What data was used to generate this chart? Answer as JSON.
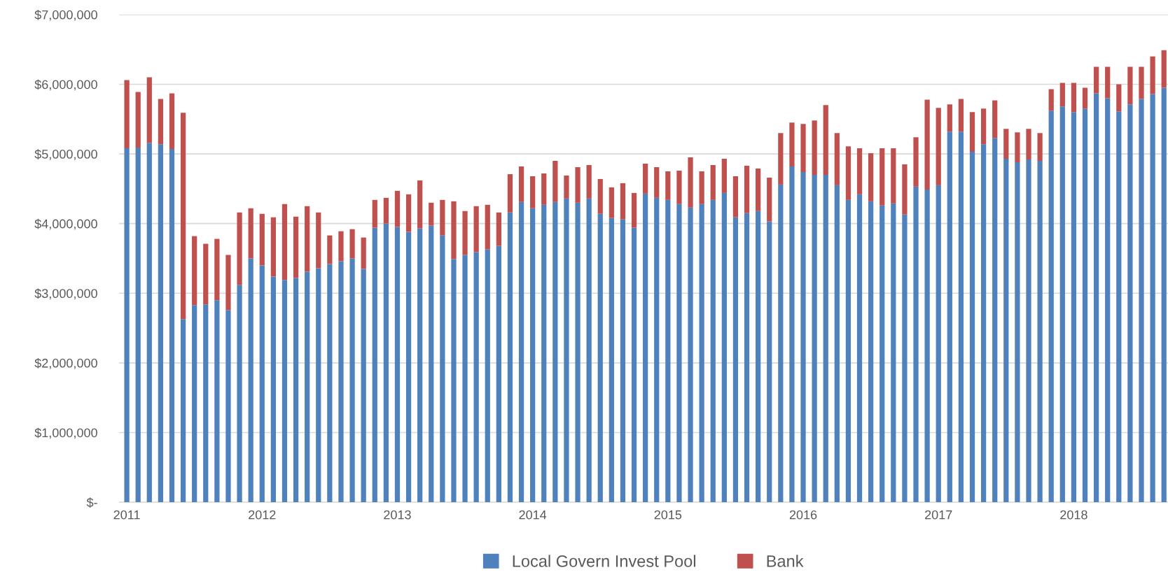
{
  "chart_data": {
    "type": "bar",
    "stacked": true,
    "categories": [
      "2011",
      null,
      null,
      null,
      null,
      null,
      null,
      null,
      null,
      null,
      null,
      null,
      "2012",
      null,
      null,
      null,
      null,
      null,
      null,
      null,
      null,
      null,
      null,
      null,
      "2013",
      null,
      null,
      null,
      null,
      null,
      null,
      null,
      null,
      null,
      null,
      null,
      "2014",
      null,
      null,
      null,
      null,
      null,
      null,
      null,
      null,
      null,
      null,
      null,
      "2015",
      null,
      null,
      null,
      null,
      null,
      null,
      null,
      null,
      null,
      null,
      null,
      "2016",
      null,
      null,
      null,
      null,
      null,
      null,
      null,
      null,
      null,
      null,
      null,
      "2017",
      null,
      null,
      null,
      null,
      null,
      null,
      null,
      null,
      null,
      null,
      null,
      "2018",
      null,
      null,
      null,
      null,
      null,
      null,
      null,
      null
    ],
    "series": [
      {
        "name": "Local Govern Invest Pool",
        "color": "#4f81bd",
        "values": [
          5080000,
          5090000,
          5160000,
          5140000,
          5070000,
          2630000,
          2830000,
          2840000,
          2900000,
          2760000,
          3120000,
          3500000,
          3400000,
          3240000,
          3190000,
          3220000,
          3310000,
          3360000,
          3420000,
          3460000,
          3500000,
          3350000,
          3940000,
          4000000,
          3950000,
          3880000,
          3930000,
          3970000,
          3830000,
          3490000,
          3550000,
          3590000,
          3630000,
          3680000,
          4160000,
          4310000,
          4220000,
          4270000,
          4310000,
          4360000,
          4300000,
          4360000,
          4140000,
          4080000,
          4060000,
          3940000,
          4430000,
          4370000,
          4340000,
          4280000,
          4230000,
          4280000,
          4340000,
          4440000,
          4090000,
          4150000,
          4180000,
          4030000,
          4560000,
          4820000,
          4740000,
          4700000,
          4700000,
          4550000,
          4340000,
          4420000,
          4320000,
          4260000,
          4290000,
          4130000,
          4530000,
          4490000,
          4550000,
          5320000,
          5320000,
          5030000,
          5140000,
          5230000,
          4930000,
          4880000,
          4920000,
          4900000,
          5620000,
          5680000,
          5600000,
          5650000,
          5870000,
          5800000,
          5610000,
          5710000,
          5790000,
          5860000,
          5950000
        ]
      },
      {
        "name": "Bank",
        "color": "#c0504d",
        "values": [
          980000,
          800000,
          940000,
          650000,
          800000,
          2960000,
          990000,
          870000,
          880000,
          790000,
          1040000,
          720000,
          740000,
          850000,
          1090000,
          880000,
          940000,
          800000,
          410000,
          430000,
          420000,
          450000,
          400000,
          370000,
          520000,
          540000,
          690000,
          330000,
          510000,
          830000,
          630000,
          660000,
          640000,
          480000,
          550000,
          510000,
          460000,
          450000,
          590000,
          330000,
          510000,
          480000,
          500000,
          440000,
          520000,
          500000,
          430000,
          440000,
          410000,
          480000,
          720000,
          470000,
          500000,
          490000,
          590000,
          680000,
          610000,
          630000,
          740000,
          630000,
          690000,
          780000,
          1000000,
          750000,
          770000,
          660000,
          690000,
          820000,
          790000,
          720000,
          710000,
          1290000,
          1110000,
          390000,
          470000,
          570000,
          510000,
          540000,
          430000,
          430000,
          440000,
          400000,
          310000,
          340000,
          420000,
          300000,
          380000,
          450000,
          390000,
          540000,
          460000,
          540000,
          540000
        ]
      }
    ],
    "ylim": [
      0,
      7000000
    ],
    "yticks": [
      {
        "value": 0,
        "label": "$-"
      },
      {
        "value": 1000000,
        "label": "$1,000,000"
      },
      {
        "value": 2000000,
        "label": "$2,000,000"
      },
      {
        "value": 3000000,
        "label": "$3,000,000"
      },
      {
        "value": 4000000,
        "label": "$4,000,000"
      },
      {
        "value": 5000000,
        "label": "$5,000,000"
      },
      {
        "value": 6000000,
        "label": "$6,000,000"
      },
      {
        "value": 7000000,
        "label": "$7,000,000"
      }
    ],
    "grid": "y",
    "legend": "bottom"
  }
}
